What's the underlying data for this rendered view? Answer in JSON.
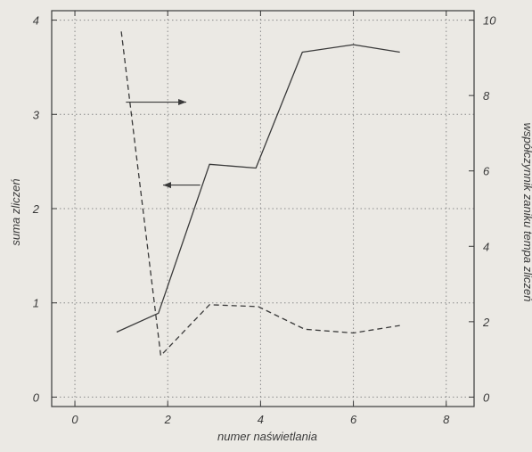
{
  "chart_data": {
    "type": "line",
    "xlabel": "numer naświetlania",
    "ylabel_left": "suma zliczeń",
    "ylabel_right": "współczynnik zaniku tempa zliczeń",
    "x_ticks": [
      0,
      2,
      4,
      6,
      8
    ],
    "y_left_ticks": [
      0,
      1,
      2,
      3,
      4
    ],
    "y_right_ticks": [
      0,
      2,
      4,
      6,
      8,
      10
    ],
    "xlim": [
      -0.5,
      8.6
    ],
    "ylim_left": [
      -0.1,
      4.1
    ],
    "ylim_right": [
      -0.25,
      10.25
    ],
    "grid": true,
    "series": [
      {
        "axis": "left",
        "style": "solid",
        "x": [
          0.9,
          1.8,
          2.9,
          3.9,
          4.9,
          6.0,
          7.0
        ],
        "y": [
          0.69,
          0.89,
          2.47,
          2.43,
          3.66,
          3.74,
          3.66
        ]
      },
      {
        "axis": "right",
        "style": "dashed",
        "x": [
          1.0,
          1.85,
          2.9,
          3.95,
          4.95,
          6.0,
          7.0
        ],
        "y": [
          9.7,
          1.1,
          2.45,
          2.4,
          1.8,
          1.7,
          1.9
        ]
      }
    ],
    "annotations": [
      {
        "type": "arrow",
        "direction": "right",
        "target_axis": "right",
        "x_from": 1.1,
        "x_to": 2.4,
        "y_left": 3.13
      },
      {
        "type": "arrow",
        "direction": "left",
        "target_axis": "left",
        "x_from": 2.7,
        "x_to": 1.9,
        "y_left": 2.25
      }
    ],
    "colors": {
      "background": "#ebe9e4",
      "line": "#3a3a3a",
      "grid": "#8a8a8a"
    }
  }
}
